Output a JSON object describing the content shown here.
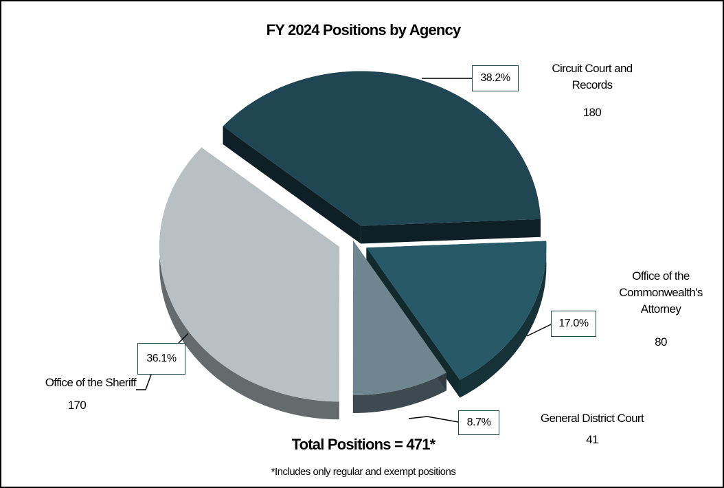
{
  "chart_data": {
    "type": "pie",
    "title": "FY 2024 Positions by Agency",
    "categories": [
      "Circuit Court and Records",
      "Office of the Commonwealth's Attorney",
      "General District Court",
      "Office of the Sheriff"
    ],
    "values": [
      38.2,
      17.0,
      8.7,
      36.1
    ],
    "value_labels": [
      "38.2%",
      "17.0%",
      "8.7%",
      "36.1%"
    ],
    "counts": [
      180,
      80,
      41,
      170
    ],
    "colors": [
      "#1f4652",
      "#275a66",
      "#6f8690",
      "#b8c0c4"
    ],
    "total_label": "Total Positions = 471*",
    "footnote": "*Includes only regular and exempt positions"
  }
}
